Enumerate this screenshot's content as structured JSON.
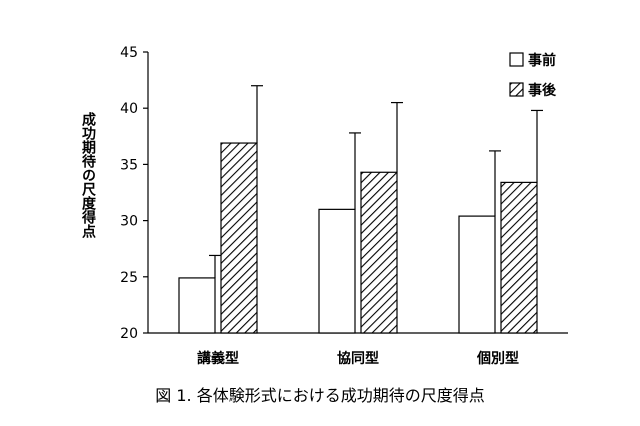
{
  "chart_data": {
    "type": "bar",
    "title": "",
    "caption": "図 1. 各体験形式における成功期待の尺度得点",
    "xlabel": "",
    "ylabel": "成功期待の尺度得点",
    "ylim": [
      20,
      45
    ],
    "yticks": [
      20,
      25,
      30,
      35,
      40,
      45
    ],
    "categories": [
      "講義型",
      "協同型",
      "個別型"
    ],
    "legend_position": "top-right",
    "grid": false,
    "series": [
      {
        "name": "事前",
        "pattern": "solid-white",
        "values": [
          24.9,
          31.0,
          30.4
        ],
        "error": [
          2.0,
          6.8,
          5.8
        ]
      },
      {
        "name": "事後",
        "pattern": "diagonal-hatch",
        "values": [
          36.9,
          34.3,
          33.4
        ],
        "error": [
          5.1,
          6.2,
          6.4
        ]
      }
    ]
  }
}
